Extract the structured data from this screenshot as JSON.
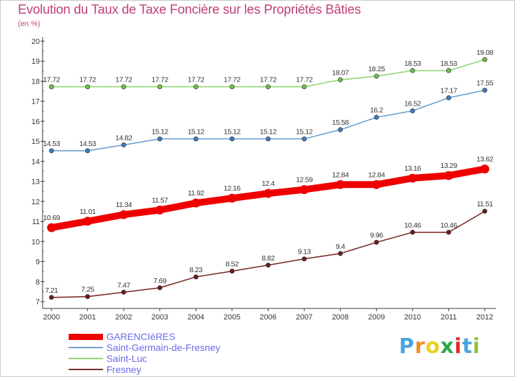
{
  "header": {
    "title": "Evolution du Taux de Taxe Foncière sur les Propriétés Bâties",
    "subtitle": "(en %)"
  },
  "chart_data": {
    "type": "line",
    "title": "Evolution du Taux de Taxe Foncière sur les Propriétés Bâties",
    "subtitle": "(en %)",
    "x": [
      "2000",
      "2001",
      "2002",
      "2003",
      "2004",
      "2005",
      "2006",
      "2007",
      "2008",
      "2009",
      "2010",
      "2011",
      "2012"
    ],
    "ylim": [
      7,
      20
    ],
    "yticks": [
      7,
      8,
      9,
      10,
      11,
      12,
      13,
      14,
      15,
      16,
      17,
      18,
      19,
      20
    ],
    "grid": false,
    "legend_position": "bottom-left",
    "series": [
      {
        "name": "GARENCIèRES",
        "color": "#ee0000",
        "emphasis": true,
        "values": [
          10.69,
          11.01,
          11.34,
          11.57,
          11.92,
          12.16,
          12.4,
          12.59,
          12.84,
          12.84,
          13.16,
          13.29,
          13.62
        ],
        "labels": [
          "10.69",
          "11.01",
          "11.34",
          "11.57",
          "11.92",
          "12.16",
          "12.4",
          "12.59",
          "12.84",
          "12.84",
          "13.16",
          "13.29",
          "13.62"
        ]
      },
      {
        "name": "Saint-Germain-de-Fresney",
        "color": "#6d9fd0",
        "marker": "#3a7cc0",
        "values": [
          14.53,
          14.53,
          14.82,
          15.12,
          15.12,
          15.12,
          15.12,
          15.12,
          15.58,
          16.2,
          16.52,
          17.17,
          17.55
        ],
        "labels": [
          "14.53",
          "14.53",
          "14.82",
          "15.12",
          "15.12",
          "15.12",
          "15.12",
          "15.12",
          "15.58",
          "16.2",
          "16.52",
          "17.17",
          "17.55"
        ]
      },
      {
        "name": "Saint-Luc",
        "color": "#8fd66b",
        "marker": "#6cc248",
        "values": [
          17.72,
          17.72,
          17.72,
          17.72,
          17.72,
          17.72,
          17.72,
          17.72,
          18.07,
          18.25,
          18.53,
          18.53,
          19.08
        ],
        "labels": [
          "17.72",
          "17.72",
          "17.72",
          "17.72",
          "17.72",
          "17.72",
          "17.72",
          "17.72",
          "18.07",
          "18.25",
          "18.53",
          "18.53",
          "19.08"
        ]
      },
      {
        "name": "Fresney",
        "color": "#7a2a2a",
        "marker": "#6a1f1f",
        "values": [
          7.21,
          7.25,
          7.47,
          7.69,
          8.23,
          8.52,
          8.82,
          9.13,
          9.4,
          9.96,
          10.46,
          10.46,
          11.51
        ],
        "labels": [
          "7.21",
          "7.25",
          "7.47",
          "7.69",
          "8.23",
          "8.52",
          "8.82",
          "9.13",
          "9.4",
          "9.96",
          "10.46",
          "10.46",
          "11.51"
        ]
      }
    ]
  },
  "legend": {
    "items": [
      {
        "label": "GARENCIèRES",
        "color": "#ee0000",
        "thick": true
      },
      {
        "label": "Saint-Germain-de-Fresney",
        "color": "#6d9fd0",
        "thick": false
      },
      {
        "label": "Saint-Luc",
        "color": "#8fd66b",
        "thick": false
      },
      {
        "label": "Fresney",
        "color": "#7a2a2a",
        "thick": false
      }
    ]
  },
  "logo": {
    "text": "Proxiti",
    "letter_colors": [
      "#4aa3df",
      "#f08a24",
      "#e8d21d",
      "#2aa84a",
      "#e02a2a",
      "#4aa3df",
      "#8fc43a"
    ]
  }
}
